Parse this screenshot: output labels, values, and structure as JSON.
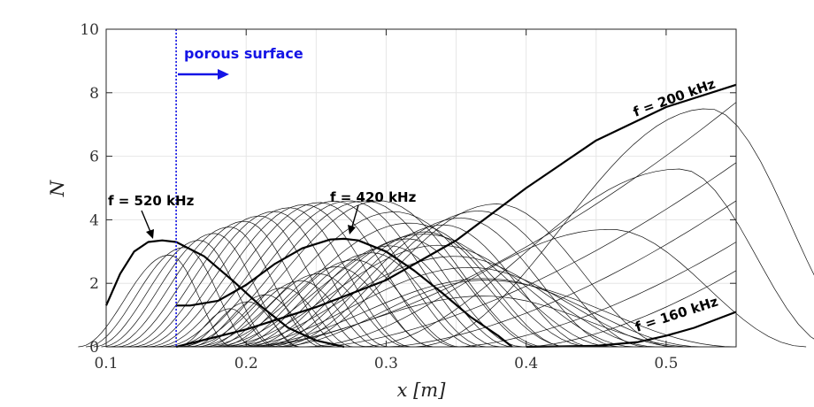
{
  "chart_data": {
    "type": "line",
    "title": "",
    "xlabel": "x [m]",
    "ylabel": "N",
    "xlim": [
      0.1,
      0.55
    ],
    "ylim": [
      0,
      10
    ],
    "x_ticks": [
      "0.1",
      "0.2",
      "0.3",
      "0.4",
      "0.5"
    ],
    "y_ticks": [
      "0",
      "2",
      "4",
      "6",
      "8",
      "10"
    ],
    "grid": true,
    "marker_line": {
      "x": 0.15,
      "label": "porous surface",
      "color": "#1414e6"
    },
    "highlighted_series": [
      {
        "name": "f = 520 kHz",
        "x": [
          0.1,
          0.11,
          0.12,
          0.13,
          0.14,
          0.15,
          0.17,
          0.19,
          0.21,
          0.23,
          0.25,
          0.27
        ],
        "y": [
          1.3,
          2.3,
          3.0,
          3.3,
          3.35,
          3.3,
          2.85,
          2.1,
          1.3,
          0.6,
          0.2,
          0.0
        ]
      },
      {
        "name": "f = 420 kHz",
        "x": [
          0.15,
          0.16,
          0.18,
          0.2,
          0.22,
          0.24,
          0.26,
          0.27,
          0.28,
          0.3,
          0.32,
          0.34,
          0.36,
          0.38,
          0.39
        ],
        "y": [
          1.3,
          1.3,
          1.45,
          1.95,
          2.6,
          3.1,
          3.38,
          3.4,
          3.35,
          3.0,
          2.4,
          1.7,
          0.95,
          0.35,
          0.0
        ]
      },
      {
        "name": "f = 200 kHz",
        "x": [
          0.15,
          0.2,
          0.25,
          0.3,
          0.35,
          0.4,
          0.45,
          0.5,
          0.55
        ],
        "y": [
          0.0,
          0.55,
          1.25,
          2.1,
          3.35,
          5.0,
          6.5,
          7.55,
          8.25
        ]
      },
      {
        "name": "f = 160 kHz",
        "x": [
          0.4,
          0.45,
          0.48,
          0.5,
          0.52,
          0.55
        ],
        "y": [
          0.0,
          0.03,
          0.15,
          0.35,
          0.6,
          1.1
        ]
      }
    ],
    "annotations": [
      {
        "text": "porous surface"
      },
      {
        "text": "f = 520 kHz"
      },
      {
        "text": "f = 420 kHz"
      },
      {
        "text": "f = 200 kHz"
      },
      {
        "text": "f = 160 kHz"
      }
    ]
  }
}
